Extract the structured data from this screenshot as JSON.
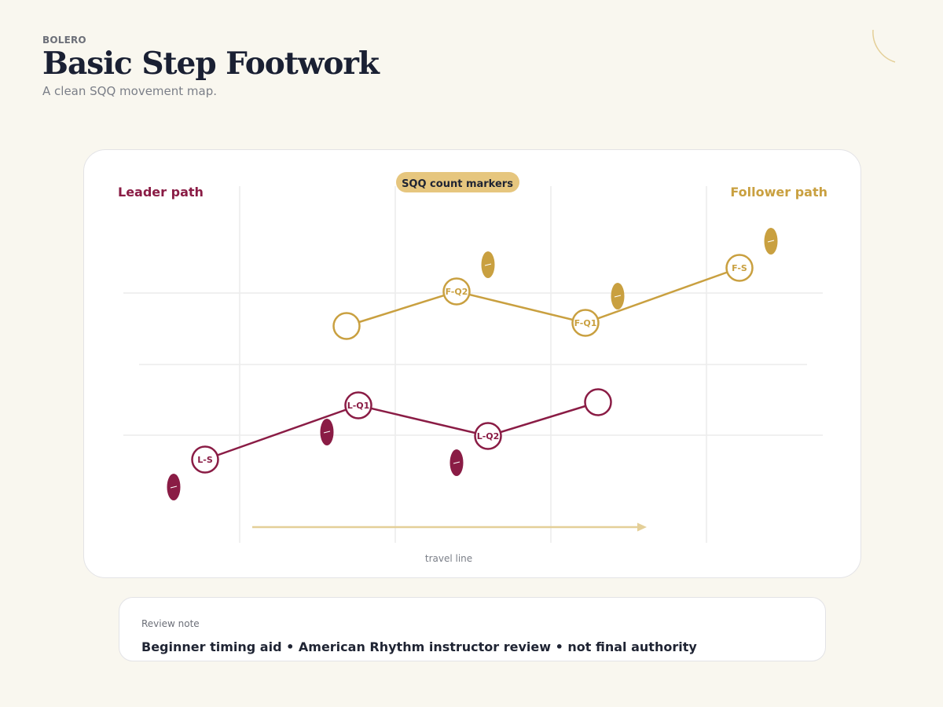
{
  "header": {
    "eyebrow": "BOLERO",
    "title": "Basic Step Footwork",
    "subtitle": "A clean SQQ movement map."
  },
  "diagram": {
    "leader_label": "Leader path",
    "follower_label": "Follower path",
    "badge_label": "SQQ count markers",
    "travel_label": "travel line",
    "colors": {
      "leader": "#8a1c45",
      "follower": "#c9a040",
      "badge_bg": "#e6c67e",
      "grid": "#ececec",
      "travel_arrow": "#e4cf98"
    },
    "leader_path": [
      {
        "label": "L-S"
      },
      {
        "label": "L-Q1"
      },
      {
        "label": "L-Q2"
      },
      {
        "label": ""
      }
    ],
    "follower_path": [
      {
        "label": ""
      },
      {
        "label": "F-Q2"
      },
      {
        "label": "F-Q1"
      },
      {
        "label": "F-S"
      }
    ]
  },
  "note": {
    "label": "Review note",
    "text": "Beginner timing aid • American Rhythm instructor review • not final authority"
  }
}
